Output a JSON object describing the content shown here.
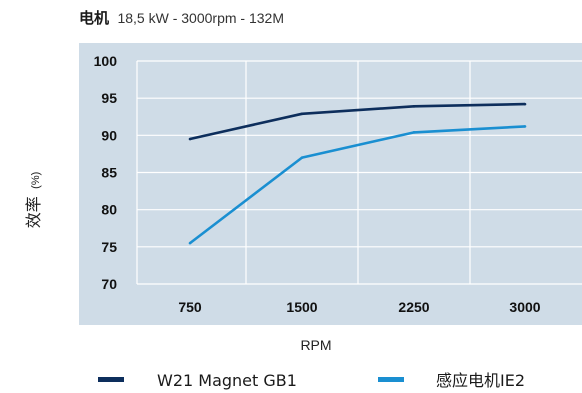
{
  "chart_data": {
    "type": "line",
    "title": "电机",
    "subtitle": "18,5 kW - 3000rpm - 132M",
    "xlabel": "RPM",
    "ylabel": "效率",
    "ylabel_unit": "(%)",
    "categories": [
      "750",
      "1500",
      "2250",
      "3000"
    ],
    "ylim": [
      70,
      100
    ],
    "yticks": [
      "100",
      "95",
      "90",
      "85",
      "80",
      "75",
      "70"
    ],
    "grid": true,
    "legend_position": "bottom",
    "plot_background": "#cfdce7",
    "series": [
      {
        "name": "W21 Magnet GB1",
        "color": "#0d2e5c",
        "values": [
          89.5,
          92.9,
          93.9,
          94.2
        ]
      },
      {
        "name": "感应电机IE2",
        "color": "#1a8fd1",
        "values": [
          75.5,
          87.0,
          90.4,
          91.2
        ]
      }
    ]
  }
}
